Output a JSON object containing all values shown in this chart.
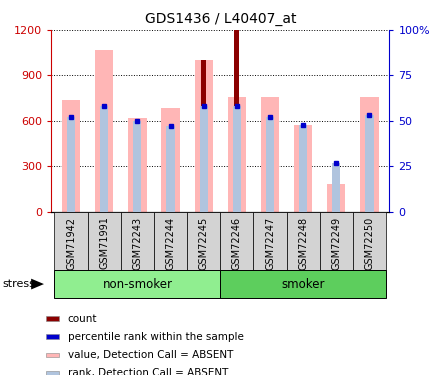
{
  "title": "GDS1436 / L40407_at",
  "samples": [
    "GSM71942",
    "GSM71991",
    "GSM72243",
    "GSM72244",
    "GSM72245",
    "GSM72246",
    "GSM72247",
    "GSM72248",
    "GSM72249",
    "GSM72250"
  ],
  "pink_bar_values": [
    735,
    1065,
    620,
    685,
    1000,
    760,
    760,
    575,
    185,
    760
  ],
  "dark_red_bar_values": [
    0,
    0,
    0,
    0,
    1000,
    1200,
    0,
    0,
    0,
    0
  ],
  "blue_square_values": [
    52,
    58,
    50,
    47,
    58,
    58,
    52,
    48,
    27,
    53
  ],
  "light_blue_bar_values": [
    52,
    58,
    50,
    47,
    58,
    58,
    52,
    48,
    27,
    53
  ],
  "ylim_left": [
    0,
    1200
  ],
  "ylim_right": [
    0,
    100
  ],
  "yticks_left": [
    0,
    300,
    600,
    900,
    1200
  ],
  "yticks_right": [
    0,
    25,
    50,
    75,
    100
  ],
  "ytick_right_labels": [
    "0",
    "25",
    "50",
    "75",
    "100%"
  ],
  "left_tick_color": "#cc0000",
  "right_tick_color": "#0000cc",
  "bar_pink_color": "#ffb6b6",
  "bar_dark_red_color": "#8b0000",
  "blue_dot_color": "#0000cc",
  "light_blue_color": "#b0c4de",
  "legend_items": [
    {
      "label": "count",
      "color": "#8b0000"
    },
    {
      "label": "percentile rank within the sample",
      "color": "#0000cc"
    },
    {
      "label": "value, Detection Call = ABSENT",
      "color": "#ffb6b6"
    },
    {
      "label": "rank, Detection Call = ABSENT",
      "color": "#b0c4de"
    }
  ],
  "non_smoker_color": "#90ee90",
  "smoker_color": "#5dce5d",
  "group_boundary": 4.5,
  "stress_label": "stress"
}
